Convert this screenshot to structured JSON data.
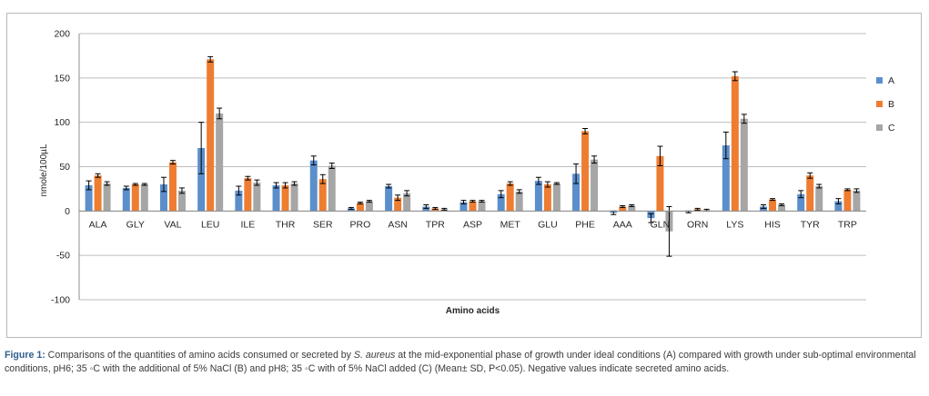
{
  "chart_data": {
    "type": "bar",
    "ylabel": "nmole/100µL",
    "xlabel": "Amino acids",
    "ylim": [
      -100,
      200
    ],
    "yticks": [
      200,
      150,
      100,
      50,
      0,
      -50,
      -100
    ],
    "grid": true,
    "legend_position": "right",
    "categories": [
      "ALA",
      "GLY",
      "VAL",
      "LEU",
      "ILE",
      "THR",
      "SER",
      "PRO",
      "ASN",
      "TPR",
      "ASP",
      "MET",
      "GLU",
      "PHE",
      "AAA",
      "GLN",
      "ORN",
      "LYS",
      "HIS",
      "TYR",
      "TRP"
    ],
    "series": [
      {
        "name": "A",
        "color": "#5b8fcb",
        "values": [
          29,
          26,
          30,
          71,
          23,
          29,
          57,
          3,
          28,
          5,
          10,
          19,
          34,
          42,
          -2,
          -8,
          -1,
          74,
          5,
          19,
          11
        ],
        "errors": [
          5,
          2,
          8,
          29,
          5,
          3,
          5,
          1,
          2,
          2,
          2,
          4,
          4,
          11,
          2,
          5,
          1,
          15,
          2,
          4,
          3
        ]
      },
      {
        "name": "B",
        "color": "#ee7d31",
        "values": [
          40,
          30,
          55,
          171,
          37,
          29,
          36,
          9,
          15,
          3,
          11,
          31,
          30,
          90,
          5,
          62,
          2,
          152,
          13,
          40,
          24
        ],
        "errors": [
          2,
          1,
          2,
          3,
          2,
          3,
          5,
          1,
          3,
          1,
          1,
          2,
          3,
          3,
          1,
          11,
          1,
          5,
          1,
          3,
          1
        ]
      },
      {
        "name": "C",
        "color": "#a6a6a6",
        "values": [
          31,
          30,
          23,
          110,
          32,
          31,
          51,
          11,
          20,
          2,
          11,
          22,
          31,
          58,
          6,
          -23,
          1,
          104,
          7,
          28,
          23
        ],
        "errors": [
          2,
          1,
          3,
          6,
          3,
          2,
          3,
          1,
          3,
          1,
          1,
          2,
          1,
          4,
          1,
          28,
          1,
          5,
          1,
          2,
          2
        ]
      }
    ]
  },
  "caption": {
    "label": "Figure 1:",
    "part1": " Comparisons of the quantities of amino acids consumed or secreted by ",
    "organism": "S. aureus",
    "part2": " at the mid-exponential phase of growth under ideal conditions (A) compared with growth under sub-optimal environmental conditions, pH6; 35 ◦C with the additional of 5% NaCl (B) and  pH8; 35 ◦C with of 5% NaCl added (C) (Mean± SD, P<0.05). Negative values indicate secreted amino acids."
  }
}
